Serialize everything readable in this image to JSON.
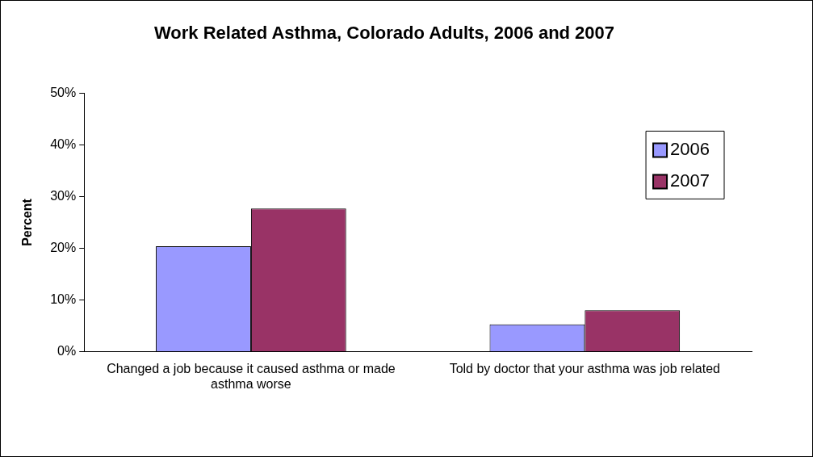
{
  "chart_data": {
    "type": "bar",
    "title": "Work Related Asthma, Colorado Adults, 2006 and 2007",
    "ylabel": "Percent",
    "categories": [
      "Changed a job because it caused asthma or made asthma worse",
      "Told by doctor that your asthma was job related"
    ],
    "series": [
      {
        "name": "2006",
        "color": "#9999ff",
        "values": [
          20.4,
          5.3
        ]
      },
      {
        "name": "2007",
        "color": "#993366",
        "values": [
          27.7,
          8.0
        ]
      }
    ],
    "ylim": [
      0,
      50
    ],
    "yticks": [
      {
        "value": 0,
        "label": "0%"
      },
      {
        "value": 10,
        "label": "10%"
      },
      {
        "value": 20,
        "label": "20%"
      },
      {
        "value": 30,
        "label": "30%"
      },
      {
        "value": 40,
        "label": "40%"
      },
      {
        "value": 50,
        "label": "50%"
      }
    ],
    "grid": false,
    "legend": "top right"
  }
}
